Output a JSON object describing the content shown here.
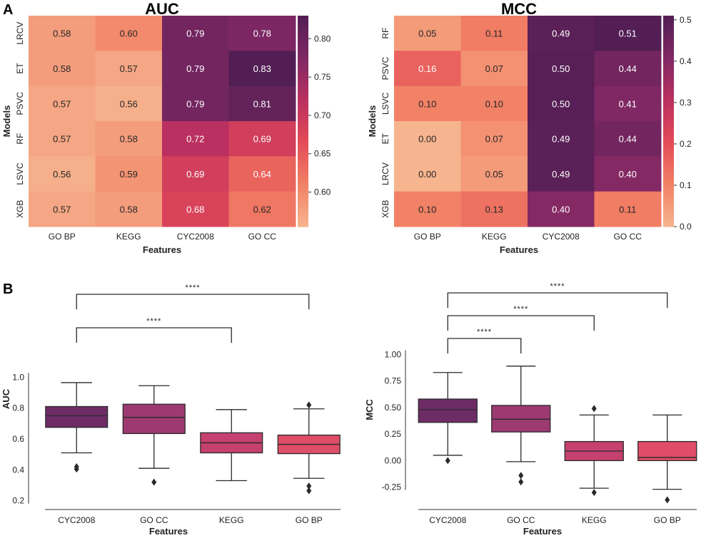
{
  "panels": [
    {
      "letter": "A"
    },
    {
      "letter": "B"
    }
  ],
  "chart_data": [
    {
      "type": "heatmap",
      "id": "auc-heatmap",
      "title": "AUC",
      "xlabel": "Features",
      "ylabel": "Models",
      "columns": [
        "GO BP",
        "KEGG",
        "CYC2008",
        "GO CC"
      ],
      "rows": [
        "LRCV",
        "ET",
        "PSVC",
        "RF",
        "LSVC",
        "XGB"
      ],
      "values": [
        [
          0.58,
          0.6,
          0.79,
          0.78
        ],
        [
          0.58,
          0.57,
          0.79,
          0.83
        ],
        [
          0.57,
          0.56,
          0.79,
          0.81
        ],
        [
          0.57,
          0.58,
          0.72,
          0.69
        ],
        [
          0.56,
          0.59,
          0.69,
          0.64
        ],
        [
          0.57,
          0.58,
          0.68,
          0.62
        ]
      ],
      "cell_labels": [
        [
          "0.58",
          "0.60",
          "0.79",
          "0.78"
        ],
        [
          "0.58",
          "0.57",
          "0.79",
          "0.83"
        ],
        [
          "0.57",
          "0.56",
          "0.79",
          "0.81"
        ],
        [
          "0.57",
          "0.58",
          "0.72",
          "0.69"
        ],
        [
          "0.56",
          "0.59",
          "0.69",
          "0.64"
        ],
        [
          "0.57",
          "0.58",
          "0.68",
          "0.62"
        ]
      ],
      "colorbar": {
        "range": [
          0.555,
          0.83
        ],
        "ticks": [
          0.6,
          0.65,
          0.7,
          0.75,
          0.8
        ],
        "tick_labels": [
          "0.60",
          "0.65",
          "0.70",
          "0.75",
          "0.80"
        ]
      }
    },
    {
      "type": "heatmap",
      "id": "mcc-heatmap",
      "title": "MCC",
      "xlabel": "Features",
      "ylabel": "Models",
      "columns": [
        "GO BP",
        "KEGG",
        "CYC2008",
        "GO CC"
      ],
      "rows": [
        "RF",
        "PSVC",
        "LSVC",
        "ET",
        "LRCV",
        "XGB"
      ],
      "values": [
        [
          0.05,
          0.11,
          0.49,
          0.51
        ],
        [
          0.16,
          0.07,
          0.5,
          0.44
        ],
        [
          0.1,
          0.1,
          0.5,
          0.41
        ],
        [
          0.0,
          0.07,
          0.49,
          0.44
        ],
        [
          0.0,
          0.05,
          0.49,
          0.4
        ],
        [
          0.1,
          0.13,
          0.4,
          0.11
        ]
      ],
      "cell_labels": [
        [
          "0.05",
          "0.11",
          "0.49",
          "0.51"
        ],
        [
          "0.16",
          "0.07",
          "0.50",
          "0.44"
        ],
        [
          "0.10",
          "0.10",
          "0.50",
          "0.41"
        ],
        [
          "0.00",
          "0.07",
          "0.49",
          "0.44"
        ],
        [
          "0.00",
          "0.05",
          "0.49",
          "0.40"
        ],
        [
          "0.10",
          "0.13",
          "0.40",
          "0.11"
        ]
      ],
      "colorbar": {
        "range": [
          0.0,
          0.51
        ],
        "ticks": [
          0.0,
          0.1,
          0.2,
          0.3,
          0.4,
          0.5
        ],
        "tick_labels": [
          "0.0",
          "0.1",
          "0.2",
          "0.3",
          "0.4",
          "0.5"
        ]
      }
    },
    {
      "type": "box",
      "id": "auc-boxplot",
      "title": "",
      "xlabel": "Features",
      "ylabel": "AUC",
      "categories": [
        "CYC2008",
        "GO CC",
        "KEGG",
        "GO BP"
      ],
      "colors": [
        "#6e2c67",
        "#9d3a72",
        "#c5416f",
        "#df4d68"
      ],
      "ylim": [
        0.18,
        1.02
      ],
      "yticks": [
        0.2,
        0.4,
        0.6,
        0.8,
        1.0
      ],
      "ytick_labels": [
        "0.2",
        "0.4",
        "0.6",
        "0.8",
        "1.0"
      ],
      "boxes": [
        {
          "whisker_low": 0.51,
          "q1": 0.675,
          "median": 0.75,
          "q3": 0.81,
          "whisker_high": 0.965,
          "outliers": [
            0.405,
            0.42
          ]
        },
        {
          "whisker_low": 0.41,
          "q1": 0.635,
          "median": 0.74,
          "q3": 0.825,
          "whisker_high": 0.945,
          "outliers": [
            0.32
          ]
        },
        {
          "whisker_low": 0.33,
          "q1": 0.51,
          "median": 0.575,
          "q3": 0.64,
          "whisker_high": 0.79,
          "outliers": []
        },
        {
          "whisker_low": 0.345,
          "q1": 0.505,
          "median": 0.565,
          "q3": 0.625,
          "whisker_high": 0.795,
          "outliers": [
            0.82,
            0.295,
            0.265
          ]
        }
      ],
      "significance": [
        {
          "from": "CYC2008",
          "to": "KEGG",
          "label": "****"
        },
        {
          "from": "CYC2008",
          "to": "GO BP",
          "label": "****"
        }
      ]
    },
    {
      "type": "box",
      "id": "mcc-boxplot",
      "title": "",
      "xlabel": "Features",
      "ylabel": "MCC",
      "categories": [
        "CYC2008",
        "GO CC",
        "KEGG",
        "GO BP"
      ],
      "colors": [
        "#6e2c67",
        "#9d3a72",
        "#c5416f",
        "#df4d68"
      ],
      "ylim": [
        -0.38,
        1.05
      ],
      "yticks": [
        -0.25,
        0.0,
        0.25,
        0.5,
        0.75,
        1.0
      ],
      "ytick_labels": [
        "-0.25",
        "0.00",
        "0.25",
        "0.50",
        "0.75",
        "1.00"
      ],
      "boxes": [
        {
          "whisker_low": 0.05,
          "q1": 0.36,
          "median": 0.48,
          "q3": 0.58,
          "whisker_high": 0.83,
          "outliers": [
            0.0
          ]
        },
        {
          "whisker_low": -0.01,
          "q1": 0.27,
          "median": 0.39,
          "q3": 0.52,
          "whisker_high": 0.89,
          "outliers": [
            -0.14,
            -0.2
          ]
        },
        {
          "whisker_low": -0.26,
          "q1": 0.0,
          "median": 0.09,
          "q3": 0.18,
          "whisker_high": 0.43,
          "outliers": [
            0.49,
            -0.3
          ]
        },
        {
          "whisker_low": -0.27,
          "q1": 0.0,
          "median": 0.03,
          "q3": 0.18,
          "whisker_high": 0.43,
          "outliers": [
            -0.37
          ]
        }
      ],
      "significance": [
        {
          "from": "CYC2008",
          "to": "GO CC",
          "label": "****"
        },
        {
          "from": "CYC2008",
          "to": "KEGG",
          "label": "****"
        },
        {
          "from": "CYC2008",
          "to": "GO BP",
          "label": "****"
        }
      ]
    }
  ]
}
